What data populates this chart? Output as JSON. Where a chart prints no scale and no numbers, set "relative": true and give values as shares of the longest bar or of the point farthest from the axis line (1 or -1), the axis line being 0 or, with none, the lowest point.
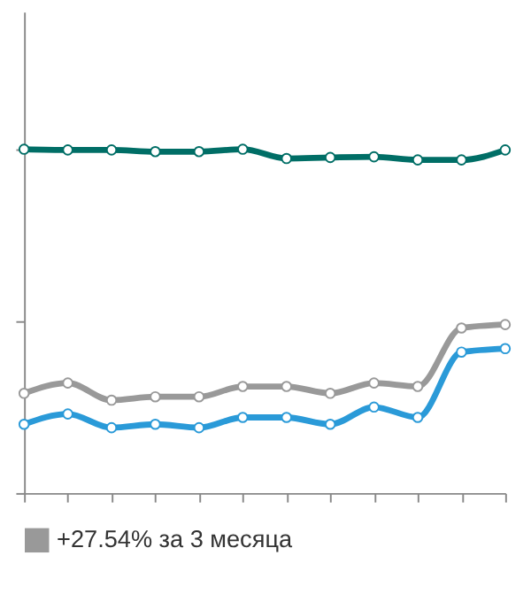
{
  "chart_data": {
    "type": "line",
    "relative": true,
    "categories": [
      null,
      null,
      null,
      null,
      null,
      null,
      null,
      null,
      null,
      null,
      null,
      null
    ],
    "series": [
      {
        "color": "#006e66",
        "values": [
          1.0,
          0.998,
          0.998,
          0.993,
          0.993,
          1.0,
          0.973,
          0.976,
          0.978,
          0.969,
          0.969,
          0.998
        ]
      },
      {
        "name": "+27.54% за 3 месяца",
        "color": "#999999",
        "values": [
          0.29,
          0.32,
          0.27,
          0.28,
          0.28,
          0.31,
          0.31,
          0.29,
          0.32,
          0.31,
          0.48,
          0.49
        ]
      },
      {
        "color": "#2a9ad8",
        "values": [
          0.2,
          0.23,
          0.19,
          0.2,
          0.19,
          0.22,
          0.22,
          0.2,
          0.25,
          0.22,
          0.41,
          0.42
        ]
      }
    ],
    "legend": "bottom",
    "marker": "circle",
    "line_style": "solid",
    "tick_labels": false
  }
}
